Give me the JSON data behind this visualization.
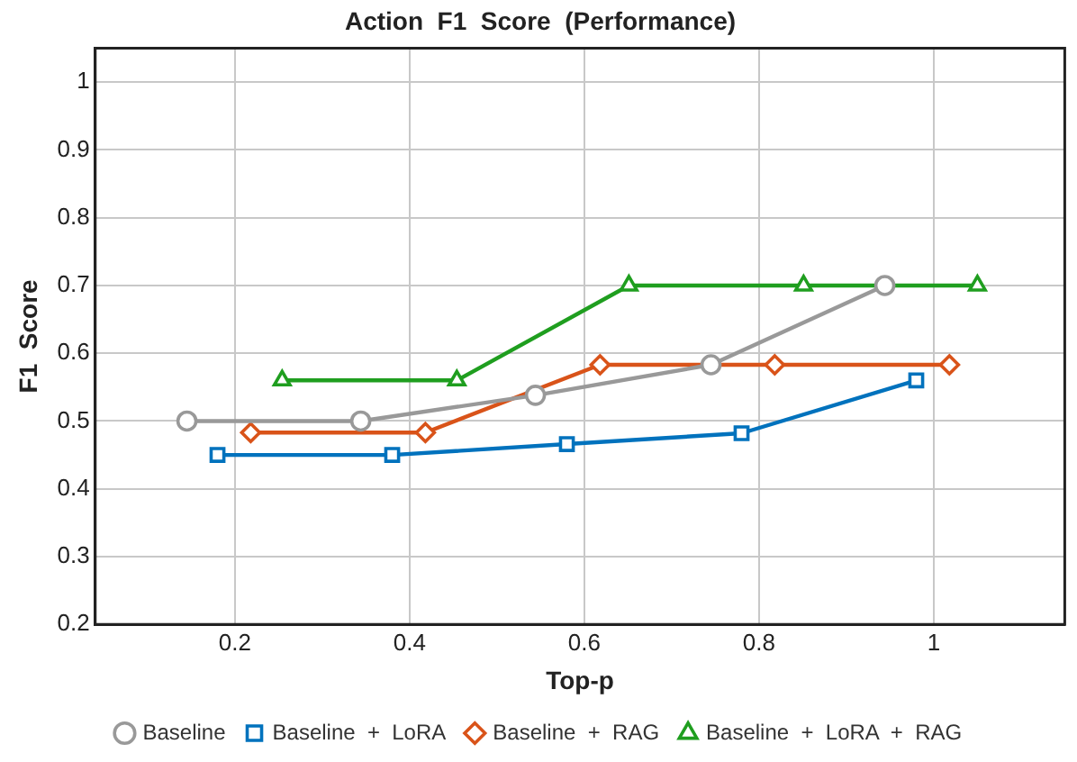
{
  "chart_data": {
    "type": "line",
    "title": "Action  F1  Score  (Performance)",
    "xlabel": "Top-p",
    "ylabel": "F1  Score",
    "xlim": [
      0.04,
      1.15
    ],
    "xticks": [
      0.2,
      0.4,
      0.6,
      0.8,
      1
    ],
    "ylim": [
      0.2,
      1.05
    ],
    "yticks": [
      0.2,
      0.3,
      0.4,
      0.5,
      0.6,
      0.7,
      0.8,
      0.9,
      1
    ],
    "grid": true,
    "legend": "bottom",
    "line_style": "solid",
    "series": [
      {
        "name": "Baseline",
        "color": "#999999",
        "marker": "circle",
        "x": [
          0.145,
          0.344,
          0.544,
          0.745,
          0.944
        ],
        "values": [
          0.5,
          0.5,
          0.538,
          0.583,
          0.7
        ]
      },
      {
        "name": "Baseline  +  LoRA",
        "color": "#0072bd",
        "marker": "square",
        "x": [
          0.18,
          0.38,
          0.58,
          0.78,
          0.98
        ],
        "values": [
          0.45,
          0.45,
          0.466,
          0.482,
          0.56
        ]
      },
      {
        "name": "Baseline  +  RAG",
        "color": "#d95319",
        "marker": "diamond",
        "x": [
          0.218,
          0.418,
          0.618,
          0.818,
          1.018
        ],
        "values": [
          0.483,
          0.483,
          0.583,
          0.583,
          0.583
        ]
      },
      {
        "name": "Baseline  +  LoRA  +  RAG",
        "color": "#1f9e1f",
        "marker": "triangle",
        "x": [
          0.254,
          0.454,
          0.651,
          0.851,
          1.05
        ],
        "values": [
          0.56,
          0.56,
          0.7,
          0.7,
          0.7
        ]
      }
    ]
  }
}
